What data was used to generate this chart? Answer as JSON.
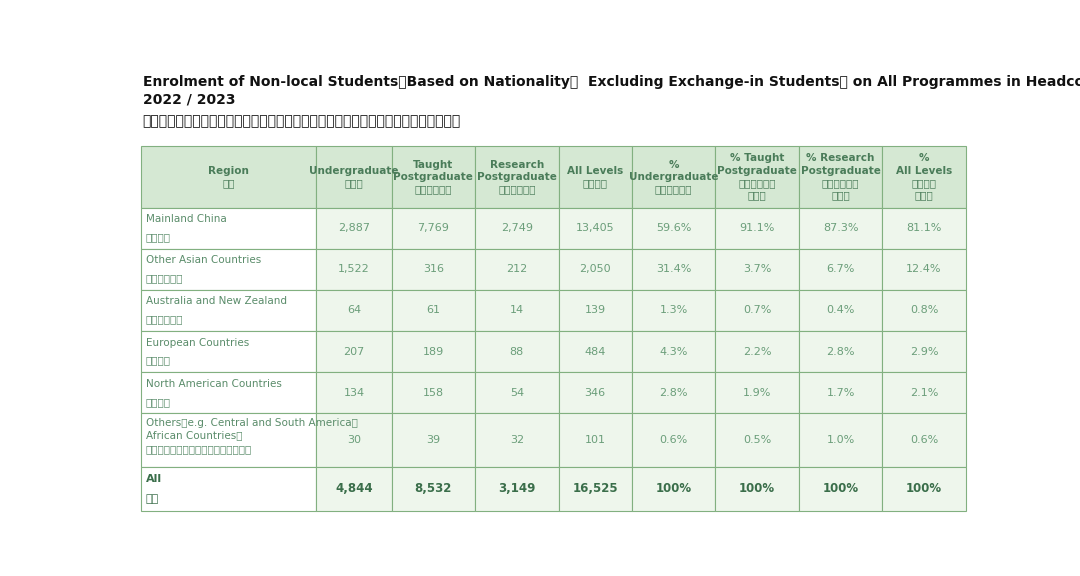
{
  "title_en_line1": "Enrolment of Non-local Students（Based on Nationality，  Excluding Exchange-in Students） on All Programmes in Headcount",
  "title_en_line2": "2022 / 2023",
  "title_zh": "二零二二／二零二三年度所有课程非本地学生（以国籍釐定，不包括交换生）就读人数",
  "header_bg": "#d5e8d3",
  "row_bg": "#eef6ec",
  "white_bg": "#ffffff",
  "border_color": "#82b080",
  "header_text_color": "#4a7c59",
  "data_text_color": "#6b9e7a",
  "region_text_color": "#5a8c6a",
  "total_text_color": "#3a6e4a",
  "title_color": "#111111",
  "bg_color": "#ffffff",
  "col_headers": [
    [
      "Region",
      "地区"
    ],
    [
      "Undergraduate",
      "本科生"
    ],
    [
      "Taught",
      "Postgraduate",
      "修课式研究生"
    ],
    [
      "Research",
      "Postgraduate",
      "研究式研究生"
    ],
    [
      "All Levels",
      "全部课程"
    ],
    [
      "%",
      "Undergraduate",
      "本科生百分比"
    ],
    [
      "% Taught",
      "Postgraduate",
      "修课式研究生",
      "百分比"
    ],
    [
      "% Research",
      "Postgraduate",
      "研究式研究生",
      "百分比"
    ],
    [
      "%",
      "All Levels",
      "全部课程",
      "百分比"
    ]
  ],
  "rows": [
    {
      "region_en": "Mainland China",
      "region_zh": "中国内地",
      "values": [
        "2,887",
        "7,769",
        "2,749",
        "13,405",
        "59.6%",
        "91.1%",
        "87.3%",
        "81.1%"
      ]
    },
    {
      "region_en": "Other Asian Countries",
      "region_zh": "其他亚洲国家",
      "values": [
        "1,522",
        "316",
        "212",
        "2,050",
        "31.4%",
        "3.7%",
        "6.7%",
        "12.4%"
      ]
    },
    {
      "region_en": "Australia and New Zealand",
      "region_zh": "澳洲及新西兰",
      "values": [
        "64",
        "61",
        "14",
        "139",
        "1.3%",
        "0.7%",
        "0.4%",
        "0.8%"
      ]
    },
    {
      "region_en": "European Countries",
      "region_zh": "欧洲国家",
      "values": [
        "207",
        "189",
        "88",
        "484",
        "4.3%",
        "2.2%",
        "2.8%",
        "2.9%"
      ]
    },
    {
      "region_en": "North American Countries",
      "region_zh": "北美国家",
      "values": [
        "134",
        "158",
        "54",
        "346",
        "2.8%",
        "1.9%",
        "1.7%",
        "2.1%"
      ]
    },
    {
      "region_en_line1": "Others（e.g. Central and South America，",
      "region_en_line2": "African Countries）",
      "region_zh": "其他（例如：中美及南美、非洲国家）",
      "values": [
        "30",
        "39",
        "32",
        "101",
        "0.6%",
        "0.5%",
        "1.0%",
        "0.6%"
      ]
    }
  ],
  "total_row": {
    "region_en": "All",
    "region_zh": "总计",
    "values": [
      "4,844",
      "8,532",
      "3,149",
      "16,525",
      "100%",
      "100%",
      "100%",
      "100%"
    ]
  }
}
